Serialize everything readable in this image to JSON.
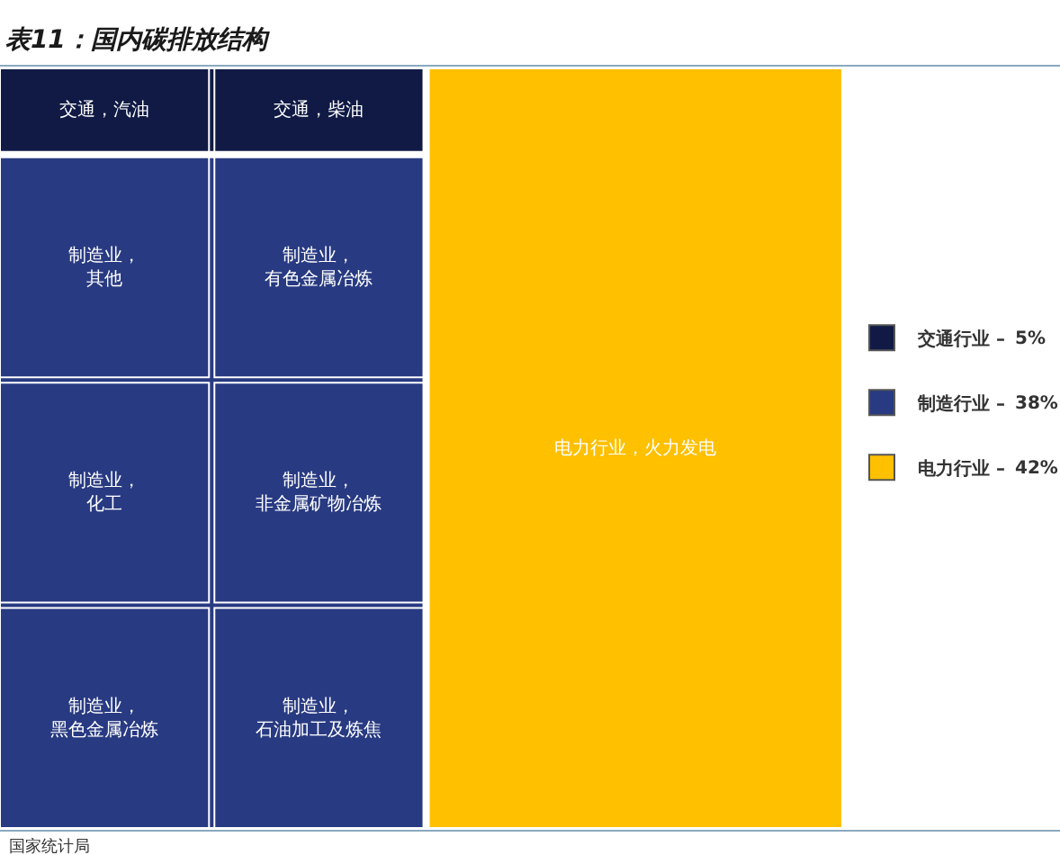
{
  "chart_data": {
    "type": "other",
    "title": "表11：国内碳排放结构",
    "series": [
      {
        "name": "交通行业 –",
        "color": "#101a45",
        "values": [
          5
        ],
        "value_labels": [
          "5%"
        ]
      },
      {
        "name": "制造行业 –",
        "color": "#283a82",
        "values": [
          38
        ],
        "value_labels": [
          "38%"
        ]
      },
      {
        "name": "电力行业 –",
        "color": "#ffc000",
        "values": [
          42
        ],
        "value_labels": [
          "42%"
        ]
      }
    ],
    "legend": "right",
    "annotations": [
      {
        "text": "交通，汽油",
        "x": "交通行业 –"
      },
      {
        "text": "交通，柴油",
        "x": "交通行业 –"
      },
      {
        "text": "制造业，其他",
        "x": "制造行业 –"
      },
      {
        "text": "制造业，有色金属冶炼",
        "x": "制造行业 –"
      },
      {
        "text": "制造业，化工",
        "x": "制造行业 –"
      },
      {
        "text": "制造业，非金属矿物冶炼",
        "x": "制造行业 –"
      },
      {
        "text": "制造业，黑色金属冶炼",
        "x": "制造行业 –"
      },
      {
        "text": "制造业，石油加工及炼焦",
        "x": "制造行业 –"
      },
      {
        "text": "电力行业，火力发电",
        "x": "电力行业 –"
      },
      "国家统计局"
    ]
  }
}
